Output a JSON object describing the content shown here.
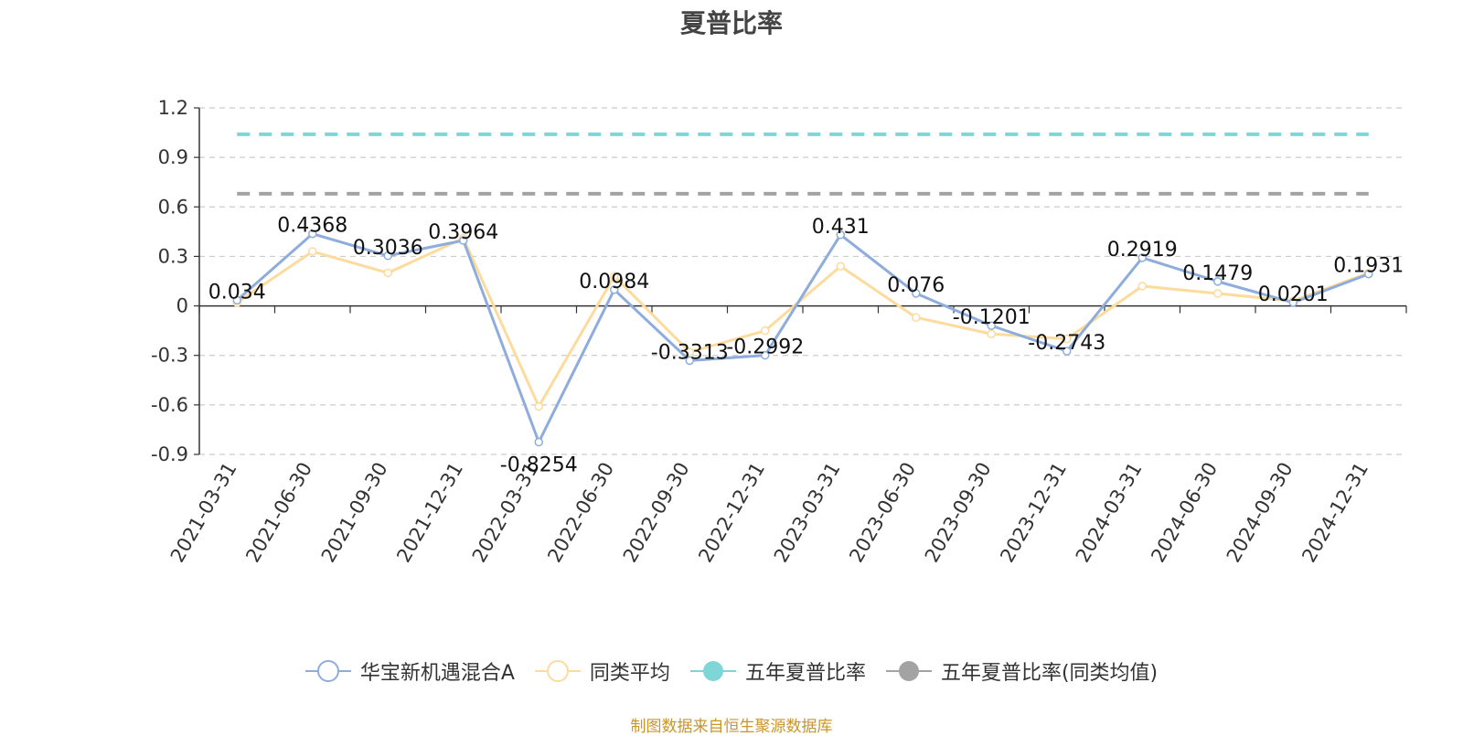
{
  "colors": {
    "fund": "#8eacdc",
    "peer_avg": "#fddb9d",
    "five_year": "#7fd6d6",
    "five_year_peer": "#a3a3a3",
    "grid": "#cccccc",
    "axis": "#333333",
    "text": "#333333"
  },
  "chart_data": {
    "type": "line",
    "title": "夏普比率",
    "categories": [
      "2021-03-31",
      "2021-06-30",
      "2021-09-30",
      "2021-12-31",
      "2022-03-31",
      "2022-06-30",
      "2022-09-30",
      "2022-12-31",
      "2023-03-31",
      "2023-06-30",
      "2023-09-30",
      "2023-12-31",
      "2024-03-31",
      "2024-06-30",
      "2024-09-30",
      "2024-12-31"
    ],
    "ylim": [
      -0.9,
      1.2
    ],
    "yticks": [
      -0.9,
      -0.6,
      -0.3,
      0,
      0.3,
      0.6,
      0.9,
      1.2
    ],
    "ytick_labels": [
      "-0.9",
      "-0.6",
      "-0.3",
      "0",
      "0.3",
      "0.6",
      "0.9",
      "1.2"
    ],
    "grid": true,
    "legend_position": "bottom-center",
    "series": [
      {
        "name": "华宝新机遇混合A",
        "color_key": "fund",
        "values": [
          0.034,
          0.4368,
          0.3036,
          0.3964,
          -0.8254,
          0.0984,
          -0.3313,
          -0.2992,
          0.431,
          0.076,
          -0.1201,
          -0.2743,
          0.2919,
          0.1479,
          0.0201,
          0.1931
        ],
        "labels": [
          "0.034",
          "0.4368",
          "0.3036",
          "0.3964",
          "-0.8254",
          "0.0984",
          "-0.3313",
          "-0.2992",
          "0.431",
          "0.076",
          "-0.1201",
          "-0.2743",
          "0.2919",
          "0.1479",
          "0.0201",
          "0.1931"
        ]
      },
      {
        "name": "同类平均",
        "color_key": "peer_avg",
        "values": [
          0.02,
          0.33,
          0.2,
          0.41,
          -0.61,
          0.18,
          -0.28,
          -0.15,
          0.24,
          -0.07,
          -0.17,
          -0.2,
          0.12,
          0.075,
          0.03,
          0.2
        ]
      },
      {
        "name": "五年夏普比率",
        "color_key": "five_year",
        "style": "dashed",
        "values": [
          1.04,
          1.04,
          1.04,
          1.04,
          1.04,
          1.04,
          1.04,
          1.04,
          1.04,
          1.04,
          1.04,
          1.04,
          1.04,
          1.04,
          1.04,
          1.04
        ]
      },
      {
        "name": "五年夏普比率(同类均值)",
        "color_key": "five_year_peer",
        "style": "dashed",
        "values": [
          0.68,
          0.68,
          0.68,
          0.68,
          0.68,
          0.68,
          0.68,
          0.68,
          0.68,
          0.68,
          0.68,
          0.68,
          0.68,
          0.68,
          0.68,
          0.68
        ]
      }
    ]
  },
  "legend": {
    "items": [
      {
        "label": "华宝新机遇混合A",
        "icon": "hollow-circle-line-icon",
        "color_key": "fund"
      },
      {
        "label": "同类平均",
        "icon": "hollow-circle-line-icon",
        "color_key": "peer_avg"
      },
      {
        "label": "五年夏普比率",
        "icon": "filled-circle-line-icon",
        "color_key": "five_year"
      },
      {
        "label": "五年夏普比率(同类均值)",
        "icon": "filled-circle-line-icon",
        "color_key": "five_year_peer"
      }
    ]
  },
  "footer": {
    "source": "制图数据来自恒生聚源数据库"
  }
}
